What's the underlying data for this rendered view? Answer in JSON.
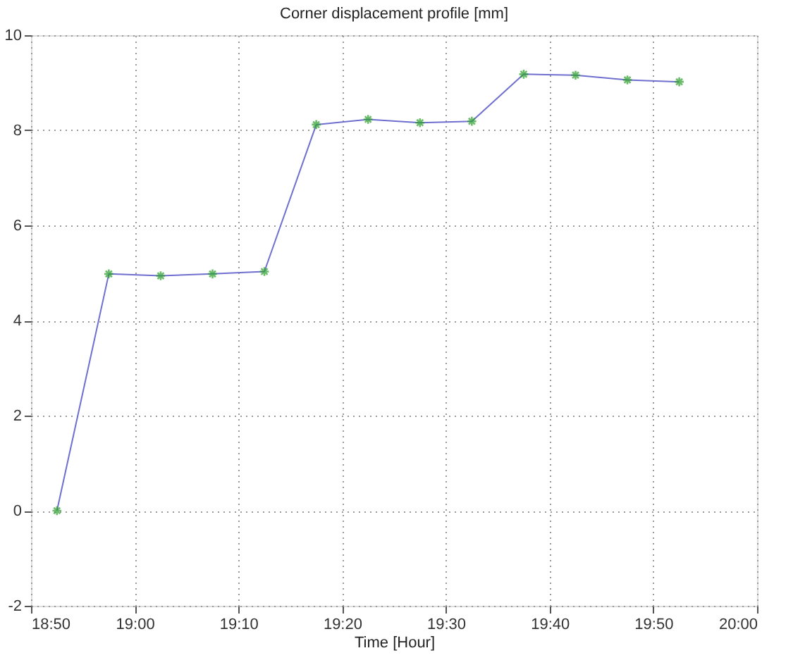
{
  "chart_data": {
    "type": "line",
    "title": "Corner displacement profile [mm]",
    "xlabel": "Time [Hour]",
    "x": [
      18.875,
      18.958333,
      19.041667,
      19.125,
      19.208333,
      19.291667,
      19.375,
      19.458333,
      19.541667,
      19.625,
      19.708333,
      19.791667,
      19.875
    ],
    "series": [
      {
        "color": "#6f6fd0",
        "marker": "none",
        "values": [
          0,
          4.98,
          4.94,
          4.98,
          5.03,
          8.12,
          8.23,
          8.16,
          8.19,
          9.18,
          9.16,
          9.06,
          9.02
        ]
      },
      {
        "type": "scatter",
        "color": "#2ca02c",
        "marker": "cross",
        "values": [
          0,
          4.98,
          4.94,
          4.98,
          5.03,
          8.12,
          8.23,
          8.16,
          8.19,
          9.18,
          9.16,
          9.06,
          9.02
        ]
      }
    ],
    "xlim": [
      18.833333,
      20
    ],
    "xticks": [
      {
        "value": 18.833333,
        "label": "18:50"
      },
      {
        "value": 19,
        "label": "19:00"
      },
      {
        "value": 19.166667,
        "label": "19:10"
      },
      {
        "value": 19.333333,
        "label": "19:20"
      },
      {
        "value": 19.5,
        "label": "19:30"
      },
      {
        "value": 19.666667,
        "label": "19:40"
      },
      {
        "value": 19.833333,
        "label": "19:50"
      },
      {
        "value": 20,
        "label": "20:00"
      }
    ],
    "ylim": [
      -2,
      10
    ],
    "yticks": [
      -2,
      0,
      2,
      4,
      6,
      8,
      10
    ],
    "grid": true
  }
}
